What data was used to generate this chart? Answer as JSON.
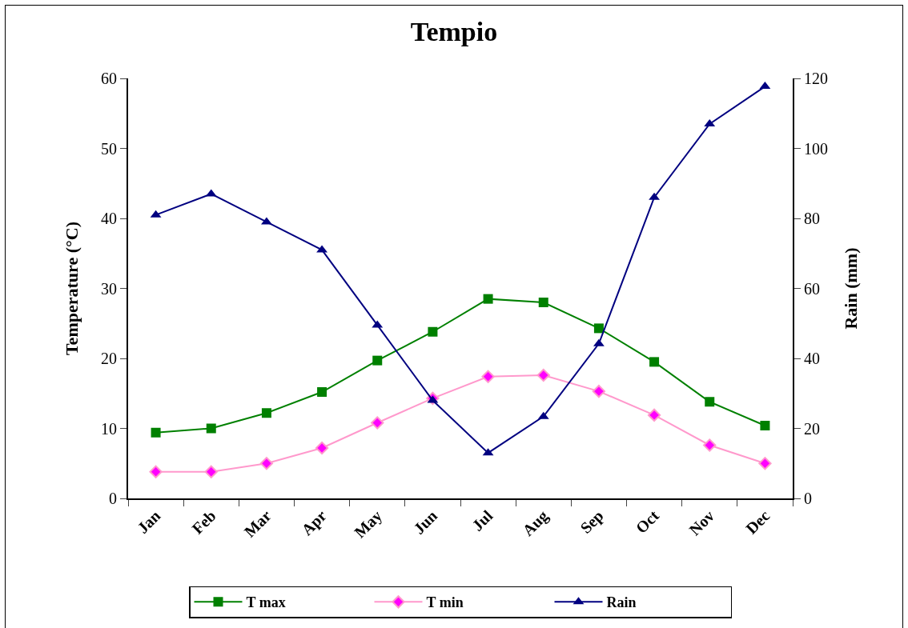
{
  "chart_data": {
    "type": "line",
    "title": "Tempio",
    "ylabel": "Temperature (°C)",
    "y2label": "Rain (mm)",
    "categories": [
      "Jan",
      "Feb",
      "Mar",
      "Apr",
      "May",
      "Jun",
      "Jul",
      "Aug",
      "Sep",
      "Oct",
      "Nov",
      "Dec"
    ],
    "series": [
      {
        "name": "T max",
        "color": "#008000",
        "marker": "square",
        "values": [
          9.4,
          10.0,
          12.2,
          15.2,
          19.7,
          23.8,
          28.5,
          28.0,
          24.3,
          19.5,
          13.8,
          10.4
        ]
      },
      {
        "name": "T min",
        "color": "#ff99cc",
        "marker": "diamond",
        "values": [
          3.8,
          3.8,
          5.0,
          7.2,
          10.8,
          14.3,
          17.4,
          17.6,
          15.3,
          11.9,
          7.6,
          5.0
        ]
      },
      {
        "name": "Rain",
        "color": "#000080",
        "marker": "triangle",
        "axis": "y2",
        "values": [
          81,
          87,
          79,
          71,
          49.5,
          28,
          13,
          23.4,
          44.2,
          86,
          107,
          117.7
        ]
      }
    ],
    "ylim": [
      0,
      60
    ],
    "yticks": [
      0,
      10,
      20,
      30,
      40,
      50,
      60
    ],
    "y2lim": [
      0,
      120
    ],
    "y2ticks": [
      0,
      20,
      40,
      60,
      80,
      100,
      120
    ],
    "grid": false,
    "legend": "bottom",
    "line_style": "solid"
  }
}
